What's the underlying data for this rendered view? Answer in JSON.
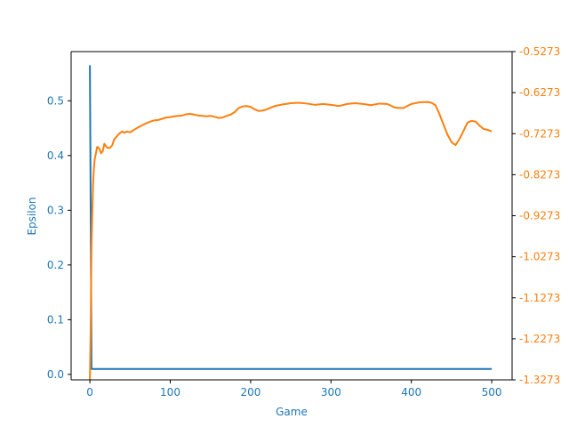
{
  "chart_data": {
    "type": "line",
    "xlabel": "Game",
    "ylabel_left": "Epsilon",
    "ylabel_right": "",
    "xlim": [
      -23.35,
      525.35
    ],
    "ylim_left": [
      -0.01,
      0.59
    ],
    "ylim_right": [
      -1.3273,
      -0.5273
    ],
    "x_ticks": [
      0,
      100,
      200,
      300,
      400,
      500
    ],
    "y_ticks_left": [
      0.0,
      0.1,
      0.2,
      0.3,
      0.4,
      0.5
    ],
    "y_tick_labels_left": [
      "0.0",
      "0.1",
      "0.2",
      "0.3",
      "0.4",
      "0.5"
    ],
    "y_ticks_right": [
      -1.3273,
      -1.2273,
      -1.1273,
      -1.0273,
      -0.9273,
      -0.8273,
      -0.7273,
      -0.6273,
      -0.5273
    ],
    "y_tick_labels_right": [
      "-1.3273",
      "-1.2273",
      "-1.1273",
      "-1.0273",
      "-0.9273",
      "-0.8273",
      "-0.7273",
      "-0.6273",
      "-0.5273"
    ],
    "grid": false,
    "colors": {
      "epsilon": "#1f77b4",
      "reward": "#ff7f0e",
      "axis": "#000000"
    },
    "series": [
      {
        "axis": "left",
        "color": "#1f77b4",
        "x": [
          0,
          1,
          2,
          3,
          500
        ],
        "y": [
          0.565,
          0.3,
          0.01,
          0.01,
          0.01
        ]
      },
      {
        "axis": "right",
        "color": "#ff7f0e",
        "x": [
          0,
          1,
          2,
          3,
          4,
          5,
          6,
          7,
          8,
          9,
          10,
          12,
          14,
          16,
          18,
          20,
          22,
          25,
          28,
          30,
          33,
          36,
          40,
          43,
          46,
          50,
          55,
          60,
          65,
          70,
          75,
          80,
          85,
          90,
          95,
          100,
          105,
          110,
          115,
          120,
          125,
          130,
          135,
          140,
          145,
          150,
          155,
          160,
          165,
          170,
          175,
          180,
          185,
          190,
          195,
          200,
          205,
          210,
          215,
          220,
          230,
          240,
          250,
          260,
          270,
          280,
          290,
          300,
          310,
          320,
          330,
          340,
          350,
          360,
          370,
          380,
          390,
          400,
          410,
          420,
          425,
          430,
          435,
          440,
          445,
          450,
          455,
          460,
          465,
          470,
          475,
          480,
          485,
          490,
          495,
          500
        ],
        "y": [
          -1.3273,
          -1.2,
          -1.0,
          -0.92,
          -0.85,
          -0.81,
          -0.79,
          -0.78,
          -0.77,
          -0.76,
          -0.76,
          -0.765,
          -0.775,
          -0.77,
          -0.752,
          -0.758,
          -0.762,
          -0.762,
          -0.755,
          -0.742,
          -0.735,
          -0.728,
          -0.722,
          -0.725,
          -0.722,
          -0.724,
          -0.718,
          -0.712,
          -0.707,
          -0.702,
          -0.698,
          -0.695,
          -0.694,
          -0.691,
          -0.688,
          -0.687,
          -0.685,
          -0.684,
          -0.683,
          -0.68,
          -0.679,
          -0.681,
          -0.683,
          -0.684,
          -0.685,
          -0.684,
          -0.686,
          -0.689,
          -0.688,
          -0.684,
          -0.681,
          -0.675,
          -0.665,
          -0.661,
          -0.66,
          -0.662,
          -0.668,
          -0.672,
          -0.671,
          -0.668,
          -0.66,
          -0.656,
          -0.653,
          -0.652,
          -0.654,
          -0.657,
          -0.655,
          -0.657,
          -0.66,
          -0.655,
          -0.653,
          -0.655,
          -0.658,
          -0.654,
          -0.655,
          -0.664,
          -0.665,
          -0.655,
          -0.651,
          -0.65,
          -0.652,
          -0.658,
          -0.68,
          -0.705,
          -0.73,
          -0.748,
          -0.755,
          -0.74,
          -0.72,
          -0.7,
          -0.696,
          -0.698,
          -0.708,
          -0.716,
          -0.718,
          -0.722
        ]
      }
    ]
  }
}
